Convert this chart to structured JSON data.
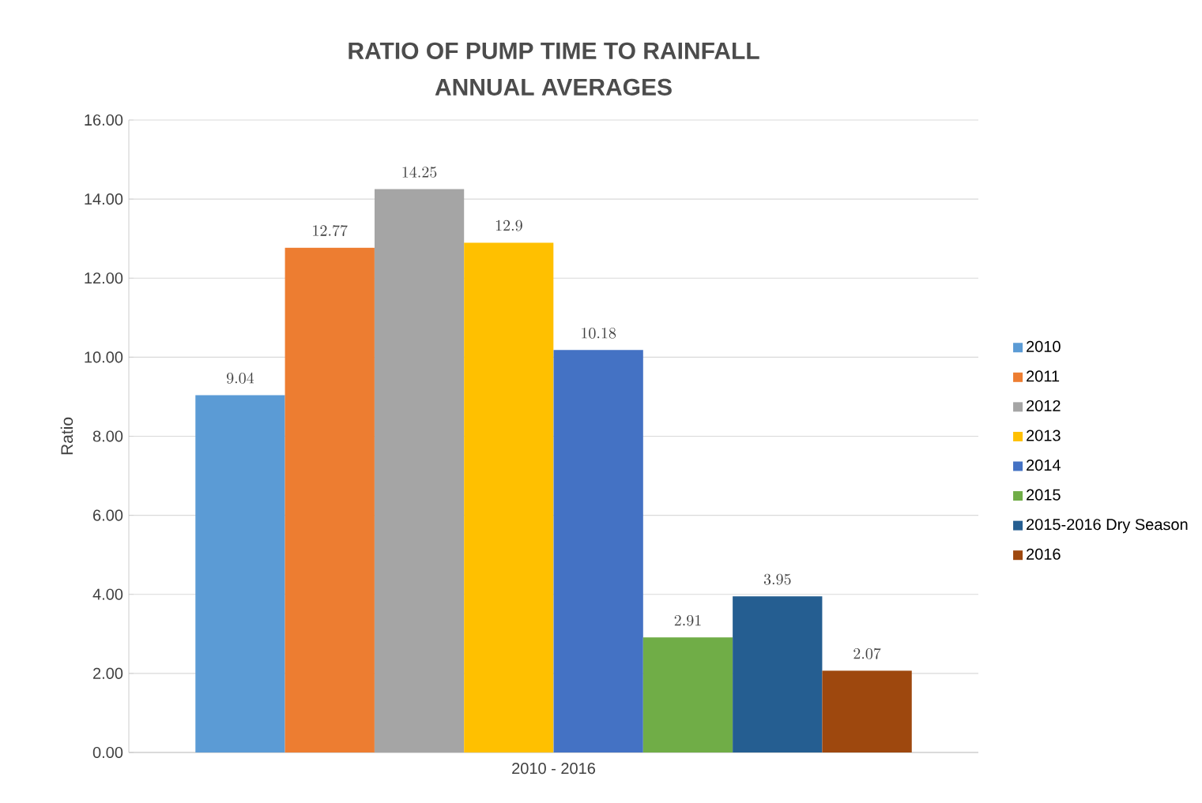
{
  "chart_data": {
    "type": "bar",
    "title": "RATIO OF PUMP TIME TO RAINFALL\nANNUAL AVERAGES",
    "ylabel": "Ratio",
    "categories": [
      "2010 - 2016"
    ],
    "series": [
      {
        "name": "2010",
        "color": "#5b9bd5",
        "values": [
          9.04
        ]
      },
      {
        "name": "2011",
        "color": "#ed7d31",
        "values": [
          12.77
        ]
      },
      {
        "name": "2012",
        "color": "#a5a5a5",
        "values": [
          14.25
        ]
      },
      {
        "name": "2013",
        "color": "#ffc000",
        "values": [
          12.9
        ]
      },
      {
        "name": "2014",
        "color": "#4472c4",
        "values": [
          10.18
        ]
      },
      {
        "name": "2015",
        "color": "#70ad47",
        "values": [
          2.91
        ]
      },
      {
        "name": "2015-2016 Dry Season",
        "color": "#255e91",
        "values": [
          3.95
        ]
      },
      {
        "name": "2016",
        "color": "#9e480e",
        "values": [
          2.07
        ]
      }
    ],
    "ylim": [
      0,
      16
    ],
    "yticks": [
      {
        "value": 0,
        "label": "0.00"
      },
      {
        "value": 2,
        "label": "2.00"
      },
      {
        "value": 4,
        "label": "4.00"
      },
      {
        "value": 6,
        "label": "6.00"
      },
      {
        "value": 8,
        "label": "8.00"
      },
      {
        "value": 10,
        "label": "10.00"
      },
      {
        "value": 12,
        "label": "12.00"
      },
      {
        "value": 14,
        "label": "14.00"
      },
      {
        "value": 16,
        "label": "16.00"
      }
    ],
    "grid": "y",
    "legend": "right",
    "data_labels": true
  }
}
